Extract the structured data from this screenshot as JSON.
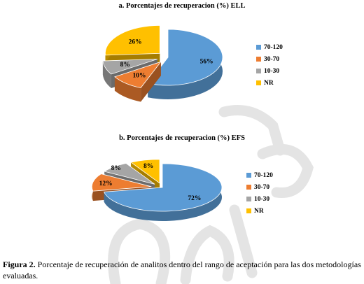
{
  "charts": [
    {
      "title": "a. Porcentajes de recuperacion (%) ELL"
    },
    {
      "title": "b. Porcentajes de recuperacion (%) EFS"
    }
  ],
  "chart_data": [
    {
      "type": "pie",
      "title": "a. Porcentajes de recuperacion (%) ELL",
      "categories": [
        "70-120",
        "30-70",
        "10-30",
        "NR"
      ],
      "values": [
        56,
        10,
        8,
        26
      ],
      "labels": [
        "56%",
        "10%",
        "8%",
        "26%"
      ],
      "colors": [
        "#5b9bd5",
        "#ed7d31",
        "#a5a5a5",
        "#ffc000"
      ],
      "legend": "right",
      "style": "3d-exploded"
    },
    {
      "type": "pie",
      "title": "b. Porcentajes de recuperacion (%) EFS",
      "categories": [
        "70-120",
        "30-70",
        "10-30",
        "NR"
      ],
      "values": [
        72,
        12,
        8,
        8
      ],
      "labels": [
        "72%",
        "12%",
        "8%",
        "8%"
      ],
      "colors": [
        "#5b9bd5",
        "#ed7d31",
        "#a5a5a5",
        "#ffc000"
      ],
      "legend": "right",
      "style": "3d-exploded"
    }
  ],
  "caption": {
    "label": "Figura 2.",
    "text": " Porcentaje de recuperación de analitos dentro del rango de aceptación para las dos metodologías evaluadas."
  }
}
